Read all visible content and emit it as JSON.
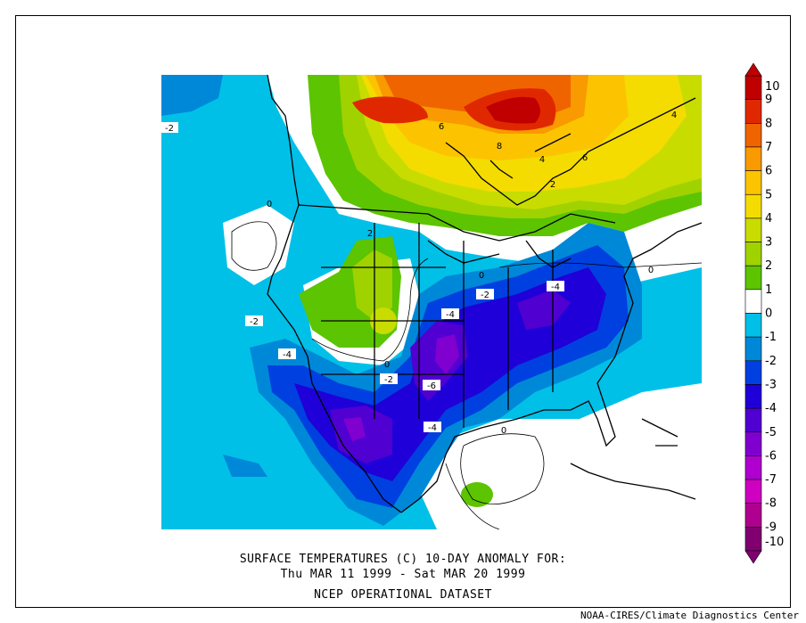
{
  "title": {
    "line1": "SURFACE TEMPERATURES (C)   10-DAY ANOMALY FOR:",
    "line2": "Thu MAR 11 1999 - Sat MAR 20 1999",
    "line3": "NCEP OPERATIONAL DATASET"
  },
  "credit": "NOAA-CIRES/Climate Diagnostics Center",
  "colorbar": {
    "levels": [
      "10",
      "9",
      "8",
      "7",
      "6",
      "5",
      "4",
      "3",
      "2",
      "1",
      "0",
      "-1",
      "-2",
      "-3",
      "-4",
      "-5",
      "-6",
      "-7",
      "-8",
      "-9",
      "-10"
    ],
    "colors": [
      "#c00000",
      "#e02800",
      "#f06400",
      "#f89a00",
      "#fcc400",
      "#f4dc00",
      "#c8dc00",
      "#a0d200",
      "#5cc400",
      "#ffffff",
      "#ffffff",
      "#00c0e8",
      "#0088d8",
      "#0040e0",
      "#2000d8",
      "#5000d0",
      "#8000d0",
      "#b000d0",
      "#d000c0",
      "#b00090",
      "#800070"
    ]
  },
  "contour_labels": [
    {
      "text": "6",
      "kind": "plain"
    },
    {
      "text": "8",
      "kind": "plain"
    },
    {
      "text": "4",
      "kind": "plain"
    },
    {
      "text": "6",
      "kind": "plain"
    },
    {
      "text": "4",
      "kind": "plain"
    },
    {
      "text": "2",
      "kind": "plain"
    },
    {
      "text": "2",
      "kind": "plain"
    },
    {
      "text": "0",
      "kind": "plain"
    },
    {
      "text": "0",
      "kind": "plain"
    },
    {
      "text": "0",
      "kind": "plain"
    },
    {
      "text": "0",
      "kind": "plain"
    },
    {
      "text": "0",
      "kind": "plain"
    },
    {
      "text": "-2",
      "kind": "boxed"
    },
    {
      "text": "-2",
      "kind": "boxed"
    },
    {
      "text": "-2",
      "kind": "boxed"
    },
    {
      "text": "-2",
      "kind": "boxed"
    },
    {
      "text": "-4",
      "kind": "boxed"
    },
    {
      "text": "-4",
      "kind": "boxed"
    },
    {
      "text": "-4",
      "kind": "boxed"
    },
    {
      "text": "-4",
      "kind": "boxed"
    },
    {
      "text": "-6",
      "kind": "boxed"
    }
  ]
}
